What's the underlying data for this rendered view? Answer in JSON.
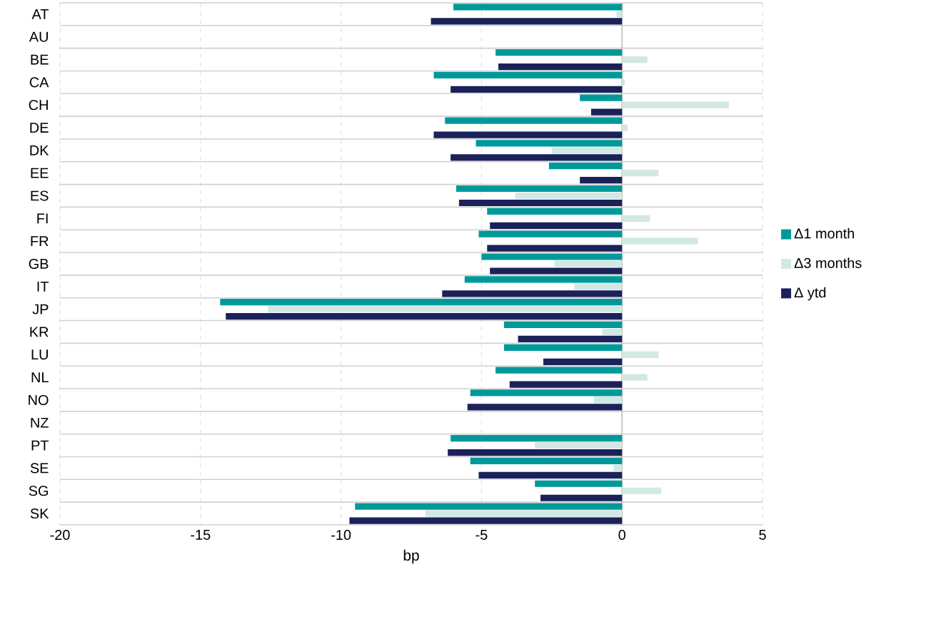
{
  "chart_data": {
    "type": "bar",
    "orientation": "horizontal",
    "xlabel": "bp",
    "categories": [
      "AT",
      "AU",
      "BE",
      "CA",
      "CH",
      "DE",
      "DK",
      "EE",
      "ES",
      "FI",
      "FR",
      "GB",
      "IT",
      "JP",
      "KR",
      "LU",
      "NL",
      "NO",
      "NZ",
      "PT",
      "SE",
      "SG",
      "SK"
    ],
    "series": [
      {
        "name": "Δ1 month",
        "color": "#00999a",
        "values": [
          -6.0,
          null,
          -4.5,
          -6.7,
          -1.5,
          -6.3,
          -5.2,
          -2.6,
          -5.9,
          -4.8,
          -5.1,
          -5.0,
          -5.6,
          -14.3,
          -4.2,
          -4.2,
          -4.5,
          -5.4,
          null,
          -6.1,
          -5.4,
          -3.1,
          -9.5
        ]
      },
      {
        "name": "Δ3 months",
        "color": "#d2e8e4",
        "values": [
          -0.2,
          null,
          0.9,
          0.1,
          3.8,
          0.2,
          -2.5,
          1.3,
          -3.8,
          1.0,
          2.7,
          -2.4,
          -1.7,
          -12.6,
          -0.7,
          1.3,
          0.9,
          -1.0,
          null,
          -3.1,
          -0.3,
          1.4,
          -7.0
        ]
      },
      {
        "name": "Δ ytd",
        "color": "#1b2159",
        "values": [
          -6.8,
          null,
          -4.4,
          -6.1,
          -1.1,
          -6.7,
          -6.1,
          -1.5,
          -5.8,
          -4.7,
          -4.8,
          -4.7,
          -6.4,
          -14.1,
          -3.7,
          -2.8,
          -4.0,
          -5.5,
          null,
          -6.2,
          -5.1,
          -2.9,
          -9.7
        ]
      }
    ],
    "xlim": [
      -20,
      5
    ],
    "xticks": [
      -20,
      -15,
      -10,
      -5,
      0,
      5
    ],
    "grid": true,
    "legend": "right"
  }
}
